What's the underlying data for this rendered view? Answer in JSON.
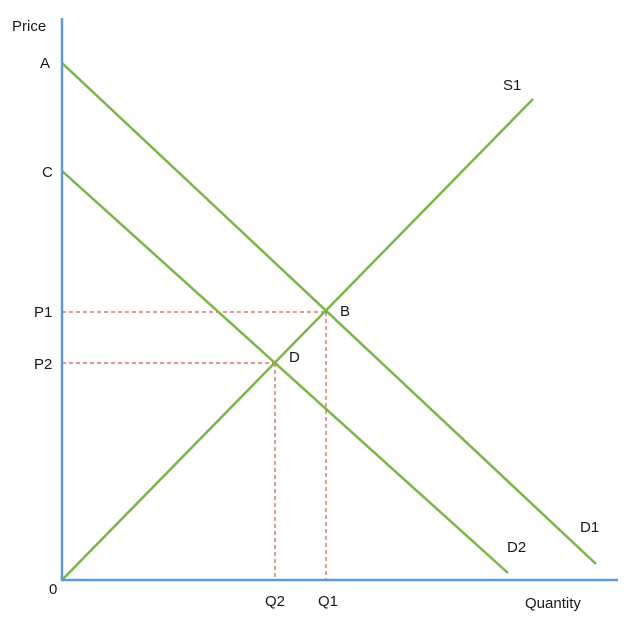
{
  "axes": {
    "y_label": "Price",
    "x_label": "Quantity",
    "origin_label": "0"
  },
  "colors": {
    "axis": "#5b9bd5",
    "curves": "#7ab648",
    "guides": "#d9534f"
  },
  "points": {
    "A": "A",
    "C": "C",
    "B": "B",
    "D": "D",
    "P1": "P1",
    "P2": "P2",
    "Q1": "Q1",
    "Q2": "Q2"
  },
  "curves": {
    "supply": "S1",
    "demand_original": "D1",
    "demand_shifted": "D2"
  }
}
